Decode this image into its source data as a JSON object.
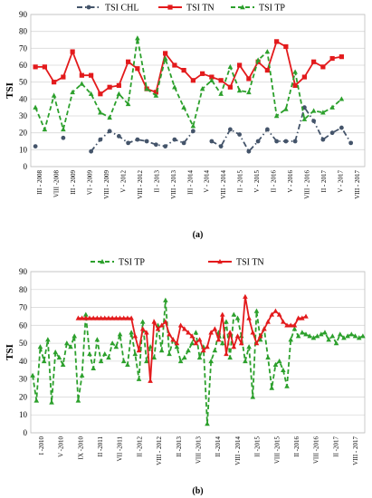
{
  "chart_data": [
    {
      "type": "line",
      "panel_label": "(a)",
      "ylabel": "TSI",
      "ylim": [
        0,
        90
      ],
      "yticks": [
        0,
        10,
        20,
        30,
        40,
        50,
        60,
        70,
        80,
        90
      ],
      "grid": true,
      "legend_position": "top",
      "x_tick_labels": [
        "III - 2008",
        "VIII -2008",
        "III - 2009",
        "VI - 2009",
        "VIII - 2009",
        "V - 2012",
        "VIII - 2012",
        "II - 2013",
        "VIII - 2013",
        "III - 2014",
        "V - 2014",
        "VIII - 2014",
        "II - 2015",
        "V - 2015",
        "II - 2016",
        "V - 2016",
        "VIII - 2016",
        "II - 2017",
        "V - 2017",
        "VIII - 2017"
      ],
      "x_count": 36,
      "series": [
        {
          "name": "TSI CHL",
          "color": "#44546a",
          "style": "dash-dot",
          "marker": "circle",
          "values": [
            12,
            null,
            null,
            17,
            null,
            null,
            9,
            16,
            21,
            18,
            14,
            16,
            15,
            13,
            12,
            16,
            14,
            21,
            null,
            15,
            12,
            22,
            19,
            9,
            15,
            22,
            15,
            15,
            15,
            35,
            27,
            16,
            20,
            23,
            14,
            null
          ]
        },
        {
          "name": "TSI TN",
          "color": "#e31a1c",
          "style": "solid",
          "marker": "square",
          "values": [
            59,
            59,
            50,
            53,
            68,
            54,
            54,
            43,
            47,
            48,
            62,
            58,
            46,
            44,
            67,
            60,
            57,
            51,
            55,
            53,
            51,
            47,
            60,
            52,
            62,
            57,
            74,
            71,
            48,
            53,
            62,
            59,
            64,
            65,
            null,
            null
          ]
        },
        {
          "name": "TSI TP",
          "color": "#2ca02c",
          "style": "dashed",
          "marker": "triangle",
          "values": [
            35,
            22,
            42,
            22,
            44,
            49,
            43,
            32,
            29,
            43,
            37,
            76,
            46,
            42,
            64,
            47,
            35,
            24,
            46,
            51,
            43,
            59,
            45,
            44,
            63,
            68,
            30,
            34,
            56,
            28,
            33,
            32,
            35,
            40,
            null,
            null
          ]
        }
      ]
    },
    {
      "type": "line",
      "panel_label": "(b)",
      "ylabel": "TSI",
      "ylim": [
        0,
        90
      ],
      "yticks": [
        0,
        10,
        20,
        30,
        40,
        50,
        60,
        70,
        80,
        90
      ],
      "grid": true,
      "legend_position": "top",
      "x_tick_labels": [
        "I -2010",
        "V -2010",
        "IX -2010",
        "II -2011",
        "VII -2011",
        "II -2012",
        "VIII - 2012",
        "II -2013",
        "VIII -2013",
        "II -2014",
        "VIII - 2014",
        "II -2015",
        "VIII -2015",
        "II -2016",
        "VIII -2016",
        "II -2017",
        "VIII - 2017"
      ],
      "x_count": 88,
      "series": [
        {
          "name": "TSI TP",
          "color": "#2ca02c",
          "style": "dashed",
          "marker": "triangle",
          "values": [
            32,
            18,
            48,
            40,
            52,
            17,
            45,
            42,
            38,
            50,
            48,
            54,
            18,
            32,
            66,
            44,
            36,
            52,
            40,
            44,
            42,
            50,
            48,
            55,
            40,
            38,
            56,
            44,
            30,
            62,
            40,
            48,
            42,
            60,
            46,
            74,
            44,
            52,
            48,
            40,
            42,
            46,
            50,
            56,
            42,
            48,
            5,
            40,
            46,
            56,
            50,
            62,
            42,
            66,
            64,
            54,
            40,
            48,
            20,
            68,
            52,
            58,
            42,
            25,
            38,
            40,
            35,
            26,
            52,
            58,
            54,
            56,
            55,
            54,
            53,
            54,
            55,
            56,
            52,
            54,
            50,
            55,
            53,
            54,
            55,
            54,
            53,
            54
          ]
        },
        {
          "name": "TSI TN",
          "color": "#e31a1c",
          "style": "solid",
          "marker": "triangle",
          "values": [
            null,
            null,
            null,
            null,
            null,
            null,
            null,
            null,
            null,
            null,
            null,
            null,
            64,
            64,
            64,
            64,
            64,
            64,
            64,
            64,
            64,
            64,
            64,
            64,
            64,
            64,
            64,
            54,
            46,
            58,
            56,
            29,
            62,
            58,
            60,
            62,
            55,
            52,
            50,
            60,
            58,
            56,
            54,
            50,
            52,
            46,
            48,
            56,
            58,
            52,
            66,
            44,
            56,
            48,
            54,
            50,
            76,
            64,
            56,
            50,
            54,
            58,
            62,
            66,
            68,
            66,
            62,
            60,
            60,
            60,
            64,
            64,
            65,
            null,
            null,
            null,
            null,
            null,
            null,
            null,
            null,
            null,
            null,
            null,
            null,
            null,
            null,
            null
          ]
        }
      ]
    }
  ]
}
